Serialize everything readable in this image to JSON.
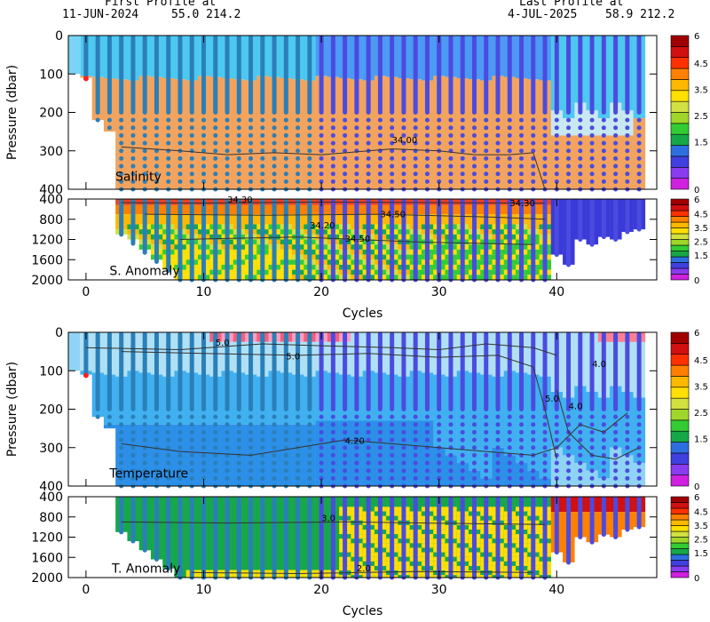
{
  "header": {
    "first_label": "First Profile at",
    "first_date": "11-JUN-2024",
    "first_pos": "55.0 214.2",
    "last_label": "Last Profile at",
    "last_date": "4-JUL-2025",
    "last_pos": "58.9 212.2"
  },
  "colors": {
    "colorbar": [
      "#d020e0",
      "#8a3cf0",
      "#4040e0",
      "#2e6fe0",
      "#16a848",
      "#33cc33",
      "#9fd62a",
      "#d2e040",
      "#ffe000",
      "#ffb800",
      "#ff8000",
      "#ff3000",
      "#d01010",
      "#a00000"
    ],
    "salinity_upper": "#4dc8f0",
    "salinity_lower": "#f2a35e",
    "temp_upper": "#b0e0f5",
    "temp_mid": "#40b0f0",
    "temp_deep": "#2c8fe8",
    "profile_first20": "#2b7fb8",
    "profile_after20": "#4b4be0"
  },
  "chart_data": [
    {
      "type": "heatmap",
      "panel": "Salinity",
      "label": "Salinity",
      "ylabel": "Pressure (dbar)",
      "xlim": [
        -1.5,
        48.5
      ],
      "ylim": [
        400,
        0
      ],
      "yticks": [
        "0",
        "100",
        "200",
        "300",
        "400"
      ],
      "contour_labels": [
        "34.00"
      ],
      "grid": false
    },
    {
      "type": "heatmap",
      "panel": "S. Anomaly",
      "label": "S. Anomaly",
      "ylim": [
        2000,
        400
      ],
      "yticks": [
        "400",
        "800",
        "1200",
        "1600",
        "2000"
      ],
      "contour_labels": [
        "34.30",
        "34.50",
        "34.30",
        "34.50",
        "34.20"
      ],
      "xlabel": "Cycles",
      "xticks": [
        "0",
        "10",
        "20",
        "30",
        "40"
      ],
      "colorbar_ticks": [
        "6",
        "4.5",
        "3.5",
        "2.5",
        "1.5",
        "0"
      ]
    },
    {
      "type": "heatmap",
      "panel": "Temperature",
      "label": "Temperature",
      "ylabel": "Pressure (dbar)",
      "ylim": [
        400,
        0
      ],
      "yticks": [
        "0",
        "100",
        "200",
        "300",
        "400"
      ],
      "contour_labels": [
        "5.0",
        "5.0",
        "4.0",
        "5.0",
        "4.0",
        "4.20"
      ]
    },
    {
      "type": "heatmap",
      "panel": "T. Anomaly",
      "label": "T. Anomaly",
      "ylim": [
        2000,
        400
      ],
      "yticks": [
        "400",
        "800",
        "1200",
        "1600",
        "2000"
      ],
      "contour_labels": [
        "3.0",
        "2.0"
      ],
      "xlabel": "Cycles",
      "xticks": [
        "0",
        "10",
        "20",
        "30",
        "40"
      ],
      "colorbar_ticks": [
        "6",
        "4.5",
        "3.5",
        "2.5",
        "1.5",
        "0"
      ],
      "profiles": {
        "first_cycle": 0,
        "last_cycle": 47,
        "color_change_cycle": 20
      }
    }
  ]
}
